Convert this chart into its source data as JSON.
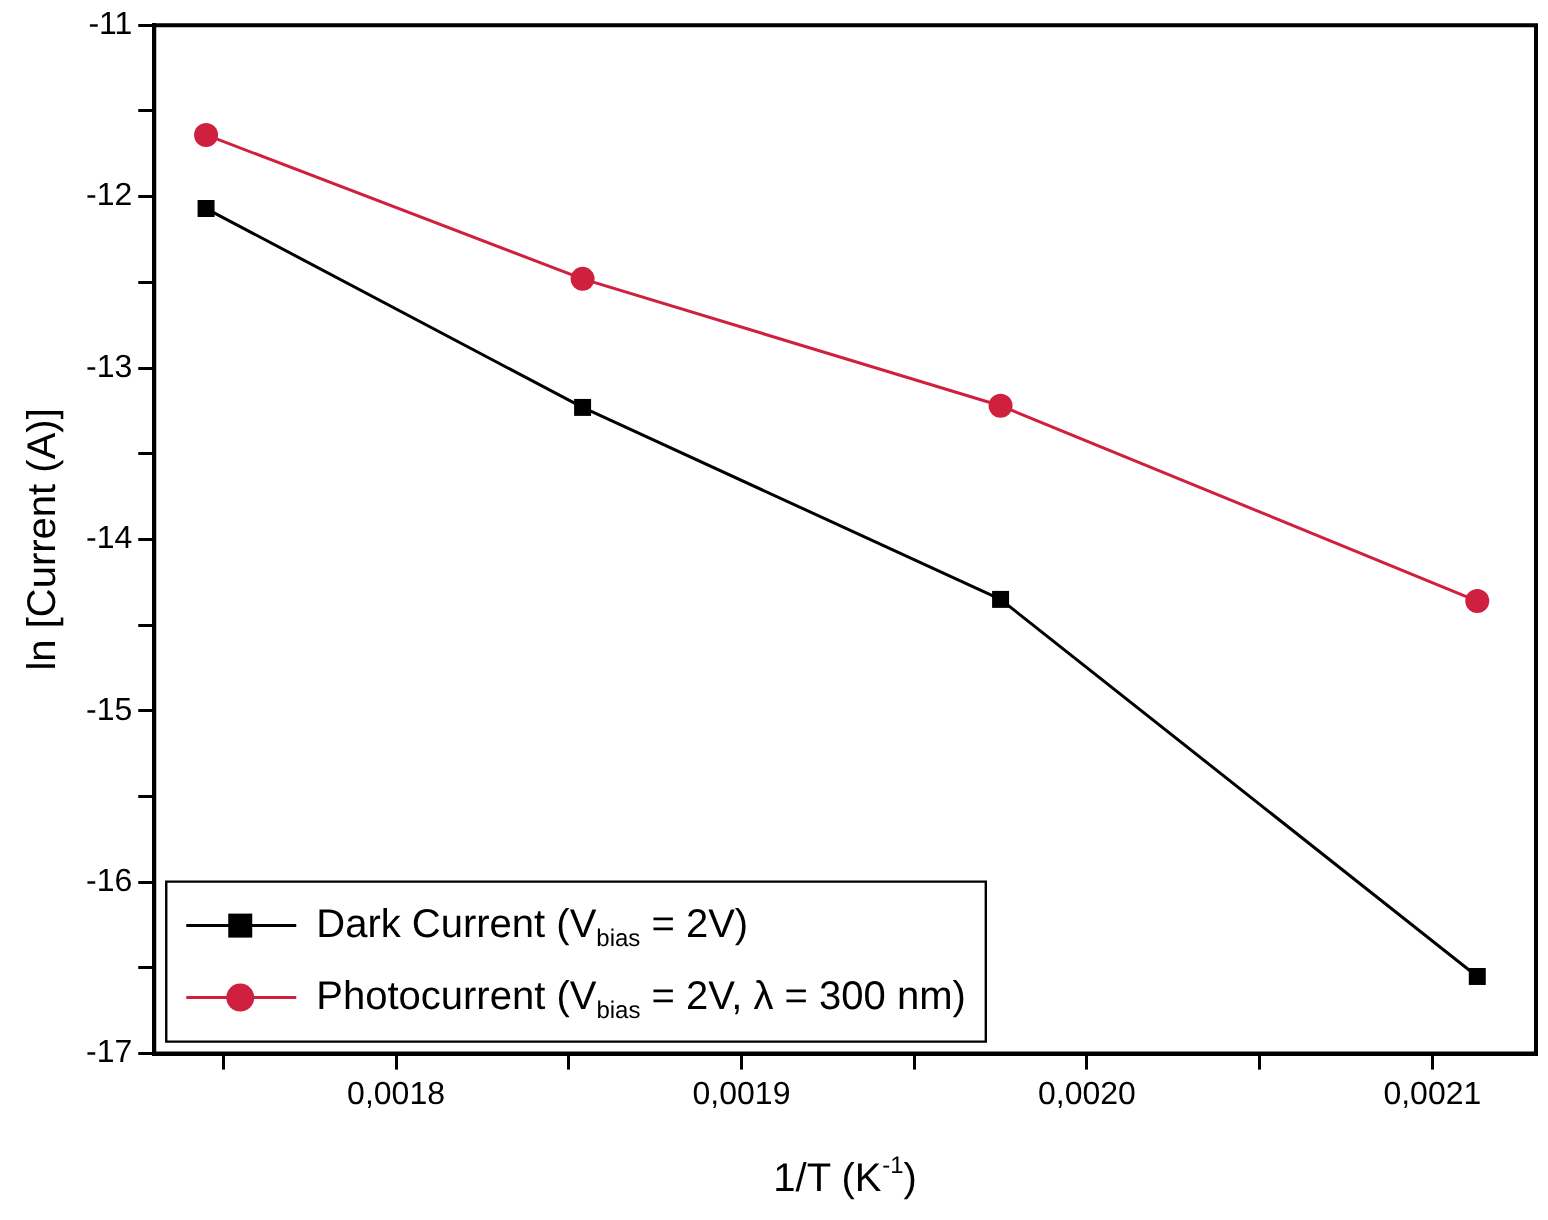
{
  "chart_data": {
    "type": "line",
    "xlabel": "1/T (K$^{-1}$)",
    "ylabel": "ln [Current (A)]",
    "xlim": [
      0.00173,
      0.00213
    ],
    "ylim": [
      -17,
      -11
    ],
    "xticks": [
      {
        "value": 0.00175,
        "label": null
      },
      {
        "value": 0.0018,
        "label": "0,0018"
      },
      {
        "value": 0.00185,
        "label": null
      },
      {
        "value": 0.0019,
        "label": "0,0019"
      },
      {
        "value": 0.00195,
        "label": null
      },
      {
        "value": 0.002,
        "label": "0,0020"
      },
      {
        "value": 0.00205,
        "label": null
      },
      {
        "value": 0.0021,
        "label": "0,0021"
      }
    ],
    "yticks": [
      -17,
      {
        "value": -16.5,
        "label": null
      },
      -16,
      {
        "value": -15.5,
        "label": null
      },
      -15,
      {
        "value": -14.5,
        "label": null
      },
      -14,
      {
        "value": -13.5,
        "label": null
      },
      -13,
      {
        "value": -12.5,
        "label": null
      },
      -12,
      {
        "value": -11.5,
        "label": null
      },
      -11
    ],
    "x": [
      0.001745,
      0.001854,
      0.001975,
      0.002113
    ],
    "series": [
      {
        "name": "Dark Current (V$_{bias}$ = 2V)",
        "color": "#000000",
        "marker": "square",
        "values": [
          -12.07,
          -13.23,
          -14.35,
          -16.55
        ]
      },
      {
        "name": "Photocurrent (V$_{bias}$ = 2V, λ = 300 nm)",
        "color": "#d0203f",
        "marker": "circle",
        "values": [
          -11.64,
          -12.48,
          -13.22,
          -14.36
        ]
      }
    ],
    "grid": false,
    "legend": "bottom left",
    "line_style": "solid"
  }
}
